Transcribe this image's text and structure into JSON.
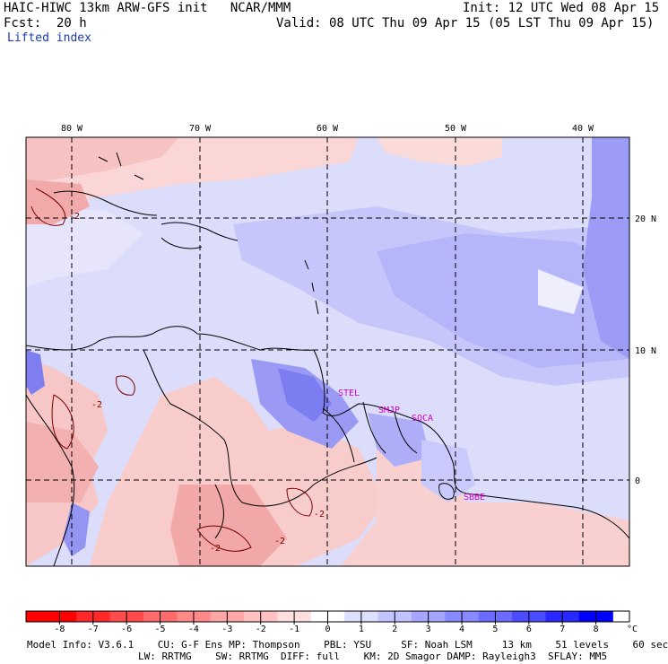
{
  "header": {
    "model_line": "HAIC-HIWC 13km ARW-GFS init   NCAR/MMM",
    "init_line": "Init: 12 UTC Wed 08 Apr 15",
    "fcst_line": "Fcst:  20 h",
    "valid_line": "Valid: 08 UTC Thu 09 Apr 15 (05 LST Thu 09 Apr 15)",
    "field_name": "Lifted index"
  },
  "map": {
    "lon_labels": [
      "80 W",
      "70 W",
      "60 W",
      "50 W",
      "40 W"
    ],
    "lat_labels": [
      "20 N",
      "10 N",
      "0"
    ],
    "stations": [
      "STEL",
      "SMJP",
      "SOCA",
      "SBBE"
    ],
    "contour_labels": [
      "-2",
      "-2",
      "-2",
      "-2",
      "-2"
    ]
  },
  "colorbar": {
    "unit": "°C",
    "ticks": [
      "-8",
      "-7",
      "-6",
      "-5",
      "-4",
      "-3",
      "-2",
      "-1",
      "0",
      "1",
      "2",
      "3",
      "4",
      "5",
      "6",
      "7",
      "8"
    ],
    "colors": [
      "#ff0000",
      "#ff2828",
      "#ff4b4b",
      "#ff6b6b",
      "#ff8989",
      "#ffa6a6",
      "#ffc2c2",
      "#ffdede",
      "#ffffff",
      "#dedeff",
      "#c2c2ff",
      "#a6a6ff",
      "#8989ff",
      "#6b6bff",
      "#4b4bff",
      "#2828ff",
      "#0000ff"
    ],
    "accent_contour": "#7a0000"
  },
  "footer": {
    "line1": "Model Info: V3.6.1    CU: G-F Ens MP: Thompson    PBL: YSU     SF: Noah LSM     13 km    51 levels    60 sec",
    "line2": "LW: RRTMG    SW: RRTMG  DIFF: full    KM: 2D Smagor DAMP: Rayleigh3  SFLAY: MM5"
  }
}
